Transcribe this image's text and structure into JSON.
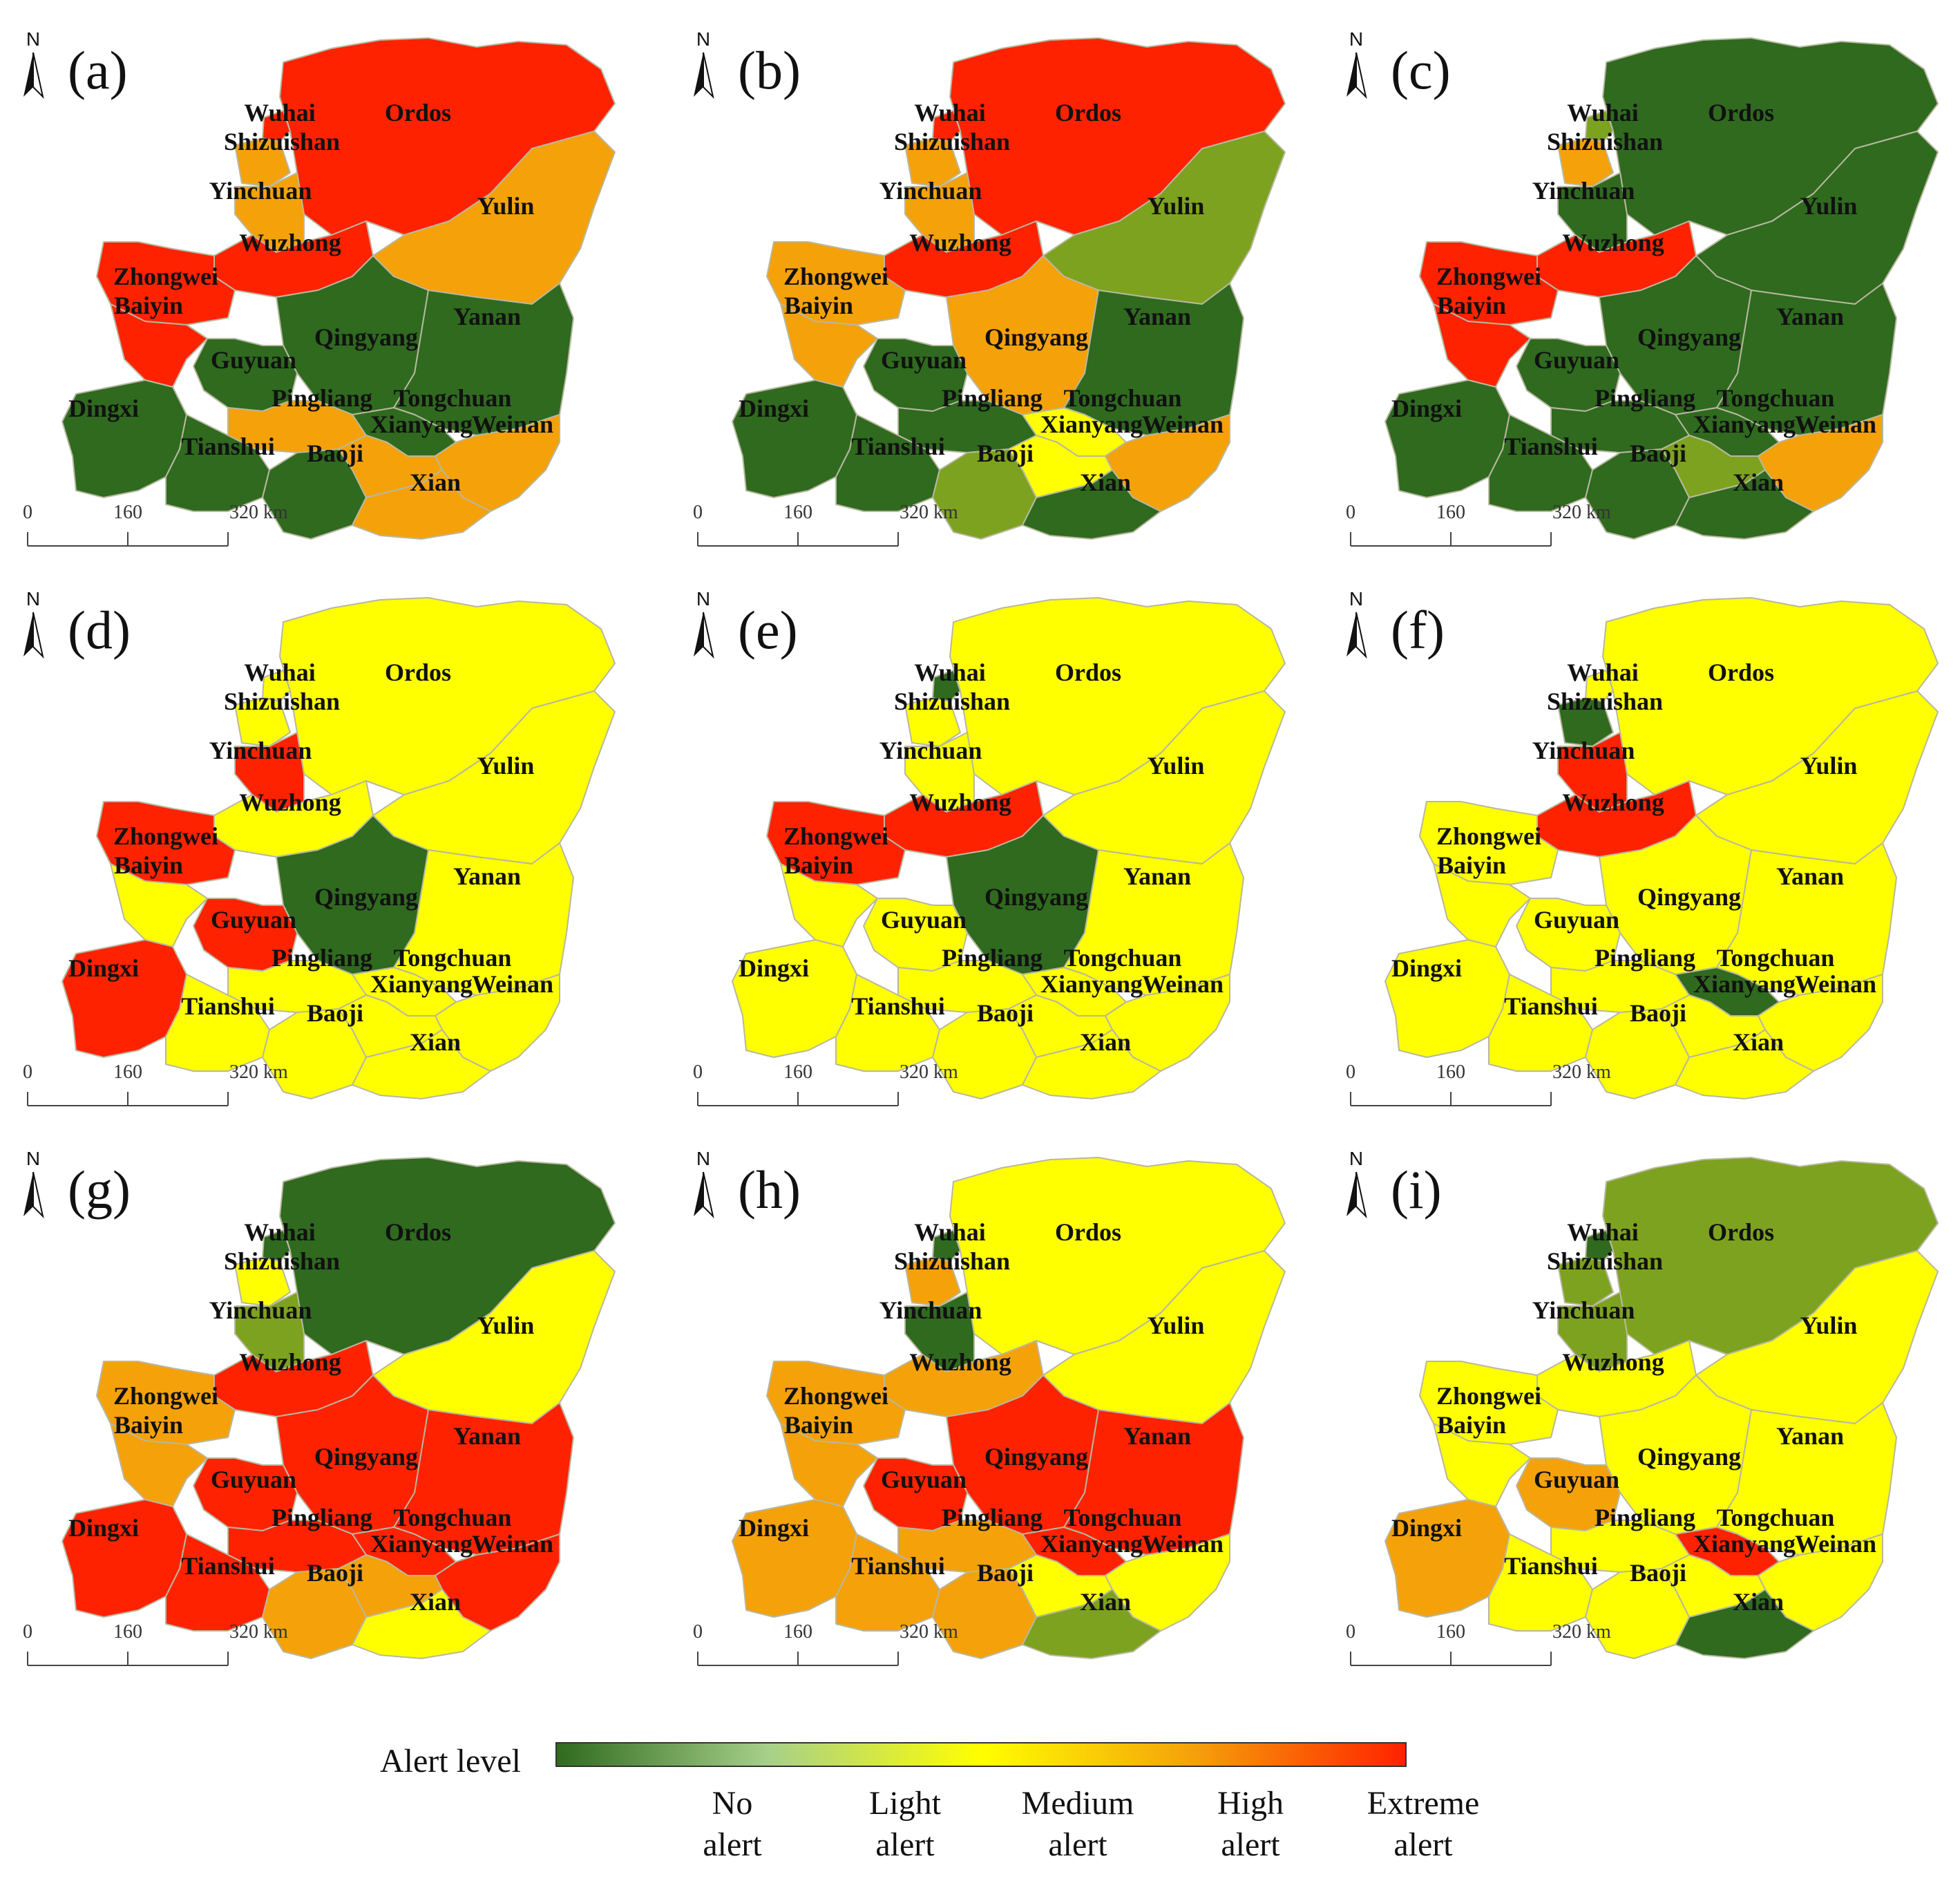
{
  "panels": [
    {
      "label": "(a)",
      "colors": {
        "Ordos": "#ff2200",
        "Wuhai": "#ff2200",
        "Shizuishan": "#f5a10a",
        "Yinchuan": "#f5a10a",
        "Yulin": "#f5a10a",
        "Wuzhong": "#ff2200",
        "Zhongwei": "#ff2200",
        "Baiyin": "#ff2200",
        "Yanan": "#2f6a1f",
        "Qingyang": "#2f6a1f",
        "Guyuan": "#2f6a1f",
        "Dingxi": "#2f6a1f",
        "Pingliang": "#f5a10a",
        "Tongchuan": "#2f6a1f",
        "Tianshui": "#2f6a1f",
        "Baoji": "#2f6a1f",
        "Xianyang": "#f5a10a",
        "Weinan": "#f5a10a",
        "Xian": "#f5a10a"
      }
    },
    {
      "label": "(b)",
      "colors": {
        "Ordos": "#ff2200",
        "Wuhai": "#ff2200",
        "Shizuishan": "#f5a10a",
        "Yinchuan": "#f5a10a",
        "Yulin": "#7da21f",
        "Wuzhong": "#ff2200",
        "Zhongwei": "#f5a10a",
        "Baiyin": "#f5a10a",
        "Yanan": "#2f6a1f",
        "Qingyang": "#f5a10a",
        "Guyuan": "#2f6a1f",
        "Dingxi": "#2f6a1f",
        "Pingliang": "#2f6a1f",
        "Tongchuan": "#ffff00",
        "Tianshui": "#2f6a1f",
        "Baoji": "#7da21f",
        "Xianyang": "#ffff00",
        "Weinan": "#f5a10a",
        "Xian": "#2f6a1f"
      }
    },
    {
      "label": "(c)",
      "colors": {
        "Ordos": "#2f6a1f",
        "Wuhai": "#7da21f",
        "Shizuishan": "#f5a10a",
        "Yinchuan": "#2f6a1f",
        "Yulin": "#2f6a1f",
        "Wuzhong": "#ff2200",
        "Zhongwei": "#ff2200",
        "Baiyin": "#ff2200",
        "Yanan": "#2f6a1f",
        "Qingyang": "#2f6a1f",
        "Guyuan": "#2f6a1f",
        "Dingxi": "#2f6a1f",
        "Pingliang": "#2f6a1f",
        "Tongchuan": "#2f6a1f",
        "Tianshui": "#2f6a1f",
        "Baoji": "#2f6a1f",
        "Xianyang": "#7da21f",
        "Weinan": "#f5a10a",
        "Xian": "#2f6a1f"
      }
    },
    {
      "label": "(d)",
      "colors": {
        "Ordos": "#ffff00",
        "Wuhai": "#ffff00",
        "Shizuishan": "#ffff00",
        "Yinchuan": "#ff2200",
        "Yulin": "#ffff00",
        "Wuzhong": "#ffff00",
        "Zhongwei": "#ff2200",
        "Baiyin": "#ffff00",
        "Yanan": "#ffff00",
        "Qingyang": "#2f6a1f",
        "Guyuan": "#ff2200",
        "Dingxi": "#ff2200",
        "Pingliang": "#ffff00",
        "Tongchuan": "#ffff00",
        "Tianshui": "#ffff00",
        "Baoji": "#ffff00",
        "Xianyang": "#ffff00",
        "Weinan": "#ffff00",
        "Xian": "#ffff00"
      }
    },
    {
      "label": "(e)",
      "colors": {
        "Ordos": "#ffff00",
        "Wuhai": "#2f6a1f",
        "Shizuishan": "#ffff00",
        "Yinchuan": "#ffff00",
        "Yulin": "#ffff00",
        "Wuzhong": "#ff2200",
        "Zhongwei": "#ff2200",
        "Baiyin": "#ffff00",
        "Yanan": "#ffff00",
        "Qingyang": "#2f6a1f",
        "Guyuan": "#ffff00",
        "Dingxi": "#ffff00",
        "Pingliang": "#ffff00",
        "Tongchuan": "#ffff00",
        "Tianshui": "#ffff00",
        "Baoji": "#ffff00",
        "Xianyang": "#ffff00",
        "Weinan": "#ffff00",
        "Xian": "#ffff00"
      }
    },
    {
      "label": "(f)",
      "colors": {
        "Ordos": "#ffff00",
        "Wuhai": "#ffff00",
        "Shizuishan": "#2f6a1f",
        "Yinchuan": "#ff2200",
        "Yulin": "#ffff00",
        "Wuzhong": "#ff2200",
        "Zhongwei": "#ffff00",
        "Baiyin": "#ffff00",
        "Yanan": "#ffff00",
        "Qingyang": "#ffff00",
        "Guyuan": "#ffff00",
        "Dingxi": "#ffff00",
        "Pingliang": "#ffff00",
        "Tongchuan": "#2f6a1f",
        "Tianshui": "#ffff00",
        "Baoji": "#ffff00",
        "Xianyang": "#ffff00",
        "Weinan": "#ffff00",
        "Xian": "#ffff00"
      }
    },
    {
      "label": "(g)",
      "colors": {
        "Ordos": "#2f6a1f",
        "Wuhai": "#2f6a1f",
        "Shizuishan": "#ffff00",
        "Yinchuan": "#7da21f",
        "Yulin": "#ffff00",
        "Wuzhong": "#ff2200",
        "Zhongwei": "#f5a10a",
        "Baiyin": "#f5a10a",
        "Yanan": "#ff2200",
        "Qingyang": "#ff2200",
        "Guyuan": "#ff2200",
        "Dingxi": "#ff2200",
        "Pingliang": "#ff2200",
        "Tongchuan": "#ff2200",
        "Tianshui": "#ff2200",
        "Baoji": "#f5a10a",
        "Xianyang": "#f5a10a",
        "Weinan": "#ff2200",
        "Xian": "#ffff00"
      }
    },
    {
      "label": "(h)",
      "colors": {
        "Ordos": "#ffff00",
        "Wuhai": "#2f6a1f",
        "Shizuishan": "#f5a10a",
        "Yinchuan": "#2f6a1f",
        "Yulin": "#ffff00",
        "Wuzhong": "#f5a10a",
        "Zhongwei": "#f5a10a",
        "Baiyin": "#f5a10a",
        "Yanan": "#ff2200",
        "Qingyang": "#ff2200",
        "Guyuan": "#ff2200",
        "Dingxi": "#f5a10a",
        "Pingliang": "#f5a10a",
        "Tongchuan": "#ff2200",
        "Tianshui": "#f5a10a",
        "Baoji": "#f5a10a",
        "Xianyang": "#ffff00",
        "Weinan": "#ffff00",
        "Xian": "#7da21f"
      }
    },
    {
      "label": "(i)",
      "colors": {
        "Ordos": "#7da21f",
        "Wuhai": "#2f6a1f",
        "Shizuishan": "#7da21f",
        "Yinchuan": "#7da21f",
        "Yulin": "#ffff00",
        "Wuzhong": "#ffff00",
        "Zhongwei": "#ffff00",
        "Baiyin": "#ffff00",
        "Yanan": "#ffff00",
        "Qingyang": "#ffff00",
        "Guyuan": "#f5a10a",
        "Dingxi": "#f5a10a",
        "Pingliang": "#ffff00",
        "Tongchuan": "#ff2200",
        "Tianshui": "#ffff00",
        "Baoji": "#ffff00",
        "Xianyang": "#ffff00",
        "Weinan": "#ffff00",
        "Xian": "#2f6a1f"
      }
    }
  ],
  "north_label": "N",
  "scale_bar": {
    "ticks": [
      "0",
      "160",
      "320 km"
    ]
  },
  "legend": {
    "title": "Alert level",
    "ramp": [
      "#2f6a1f",
      "#a7d08a",
      "#ffff00",
      "#f5a10a",
      "#ff2200"
    ],
    "levels": [
      {
        "line1": "No",
        "line2": "alert"
      },
      {
        "line1": "Light",
        "line2": "alert"
      },
      {
        "line1": "Medium",
        "line2": "alert"
      },
      {
        "line1": "High",
        "line2": "alert"
      },
      {
        "line1": "Extreme",
        "line2": "alert"
      }
    ]
  }
}
